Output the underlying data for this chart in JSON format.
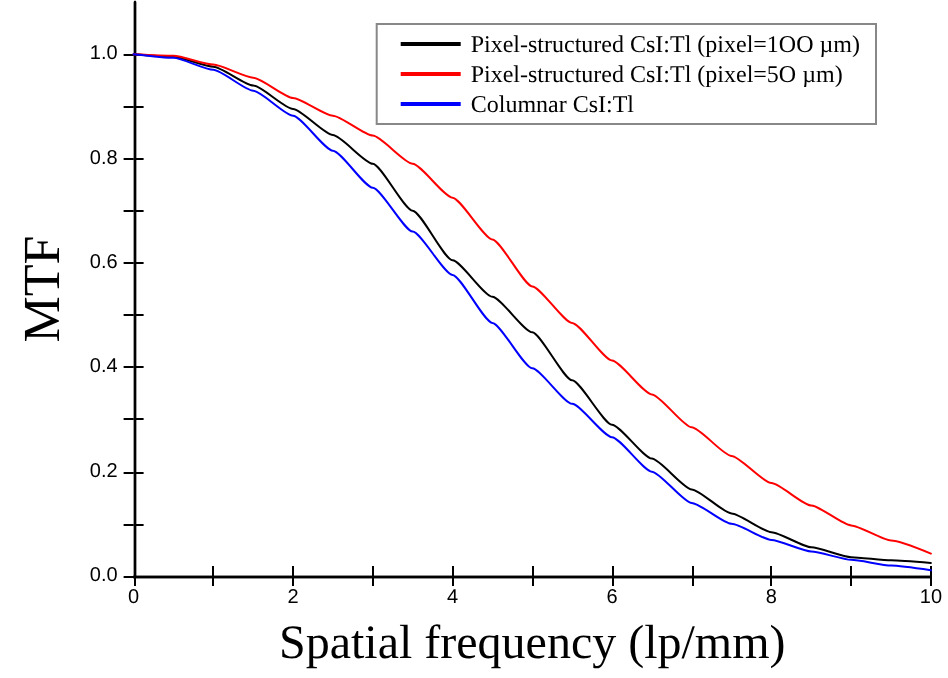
{
  "chart_data": {
    "type": "line",
    "xlabel": "Spatial frequency (lp/mm)",
    "ylabel": "MTF",
    "x": [
      0,
      0.5,
      1,
      1.5,
      2,
      2.5,
      3,
      3.5,
      4,
      4.5,
      5,
      5.5,
      6,
      6.5,
      7,
      7.5,
      8,
      8.5,
      9,
      9.5,
      10
    ],
    "series": [
      {
        "name": "Pixel-structured CsI:Tl (pixel=1OO µm)",
        "color": "#000000",
        "values": [
          1.0,
          0.995,
          0.976,
          0.94,
          0.895,
          0.845,
          0.79,
          0.7,
          0.605,
          0.535,
          0.467,
          0.375,
          0.29,
          0.225,
          0.166,
          0.12,
          0.084,
          0.055,
          0.036,
          0.03,
          0.025
        ]
      },
      {
        "name": "Pixel-structured CsI:Tl (pixel=5O µm)",
        "color": "#ff0000",
        "values": [
          1.0,
          0.997,
          0.98,
          0.955,
          0.916,
          0.882,
          0.844,
          0.79,
          0.725,
          0.645,
          0.555,
          0.485,
          0.413,
          0.348,
          0.285,
          0.23,
          0.178,
          0.135,
          0.097,
          0.068,
          0.043
        ]
      },
      {
        "name": "Columnar CsI:Tl",
        "color": "#0000ff",
        "values": [
          1.0,
          0.993,
          0.97,
          0.93,
          0.882,
          0.815,
          0.744,
          0.66,
          0.577,
          0.485,
          0.398,
          0.33,
          0.266,
          0.2,
          0.14,
          0.1,
          0.069,
          0.047,
          0.031,
          0.02,
          0.011
        ]
      }
    ],
    "xlim": [
      0,
      10
    ],
    "xticks": [
      0,
      2,
      4,
      6,
      8,
      10
    ],
    "ylim": [
      0,
      1.1
    ],
    "yticks": [
      {
        "value": 0,
        "label": "0.0"
      },
      0.2,
      0.4,
      0.6,
      0.8,
      {
        "value": 1,
        "label": "1.0"
      }
    ],
    "grid": false,
    "legend": "top right",
    "marker": "none",
    "line_style": "solid"
  }
}
